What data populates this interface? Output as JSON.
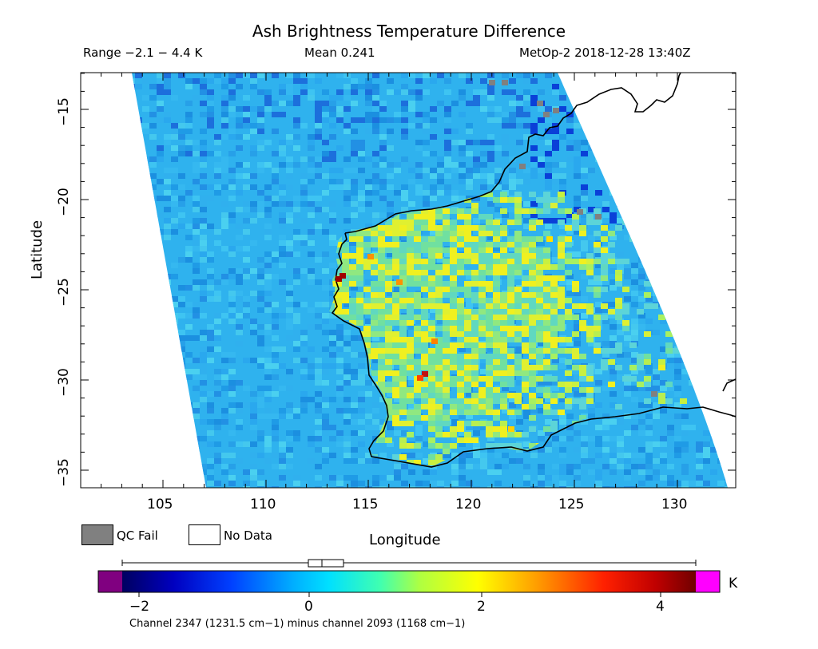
{
  "title": "Ash Brightness Temperature Difference",
  "header": {
    "range": "Range −2.1 − 4.4 K",
    "mean": "Mean 0.241",
    "satellite": "MetOp-2 2018-12-28 13:40Z"
  },
  "axes": {
    "x": {
      "label": "Longitude",
      "ticks": [
        "105",
        "110",
        "115",
        "120",
        "125",
        "130"
      ]
    },
    "y": {
      "label": "Latitude",
      "ticks": [
        "−15",
        "−20",
        "−25",
        "−30",
        "−35"
      ]
    }
  },
  "legend": {
    "qc_fail": "QC Fail",
    "no_data": "No Data",
    "qc_fail_color": "#808080",
    "no_data_color": "#ffffff"
  },
  "colorbar": {
    "unit": "K",
    "tick_labels": [
      "−2",
      "0",
      "2",
      "4"
    ],
    "caption": "Channel 2347 (1231.5 cm−1) minus channel 2093 (1168 cm−1)",
    "under_color": "#800080",
    "over_color": "#ff00ff"
  },
  "map": {
    "region": "Western Australia",
    "lon_range": [
      101,
      132.8
    ],
    "lat_range": [
      -36,
      -13
    ],
    "background_value_k": 0.3
  }
}
